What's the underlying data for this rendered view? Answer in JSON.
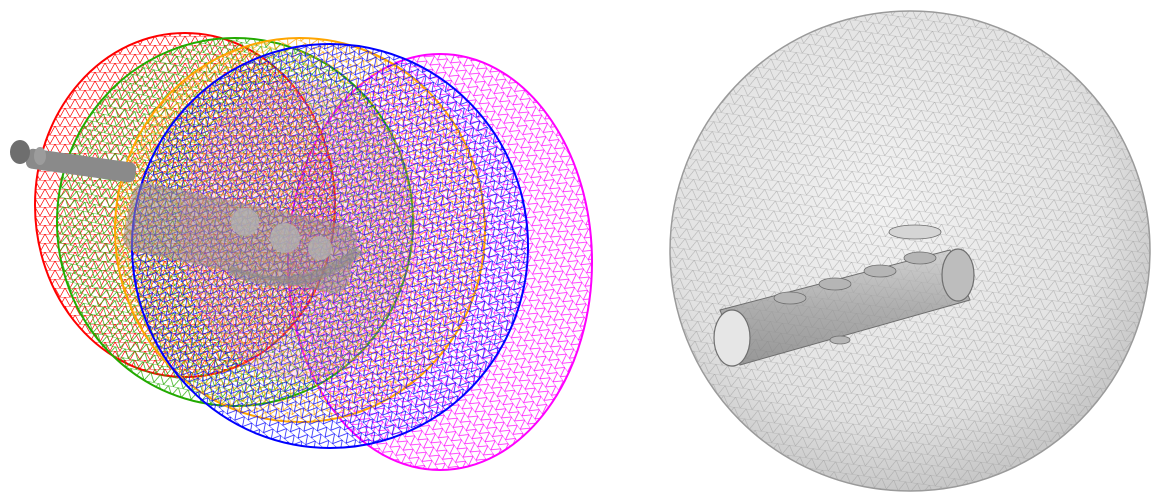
{
  "figure": {
    "left_panel": {
      "subject": "overlapping-wireframe-sphere-meshes",
      "mesh_colors": [
        "#ff0000",
        "#22aa00",
        "#ffa500",
        "#0000ff",
        "#ff00ff"
      ],
      "object_color": "#8a8a8a"
    },
    "right_panel": {
      "subject": "tetrahedral-sphere-mesh-with-embedded-cylinder",
      "sphere_color": "#e6e6e6",
      "mesh_line_color": "#9a9a9a",
      "object_color": "#a0a0a0"
    }
  }
}
